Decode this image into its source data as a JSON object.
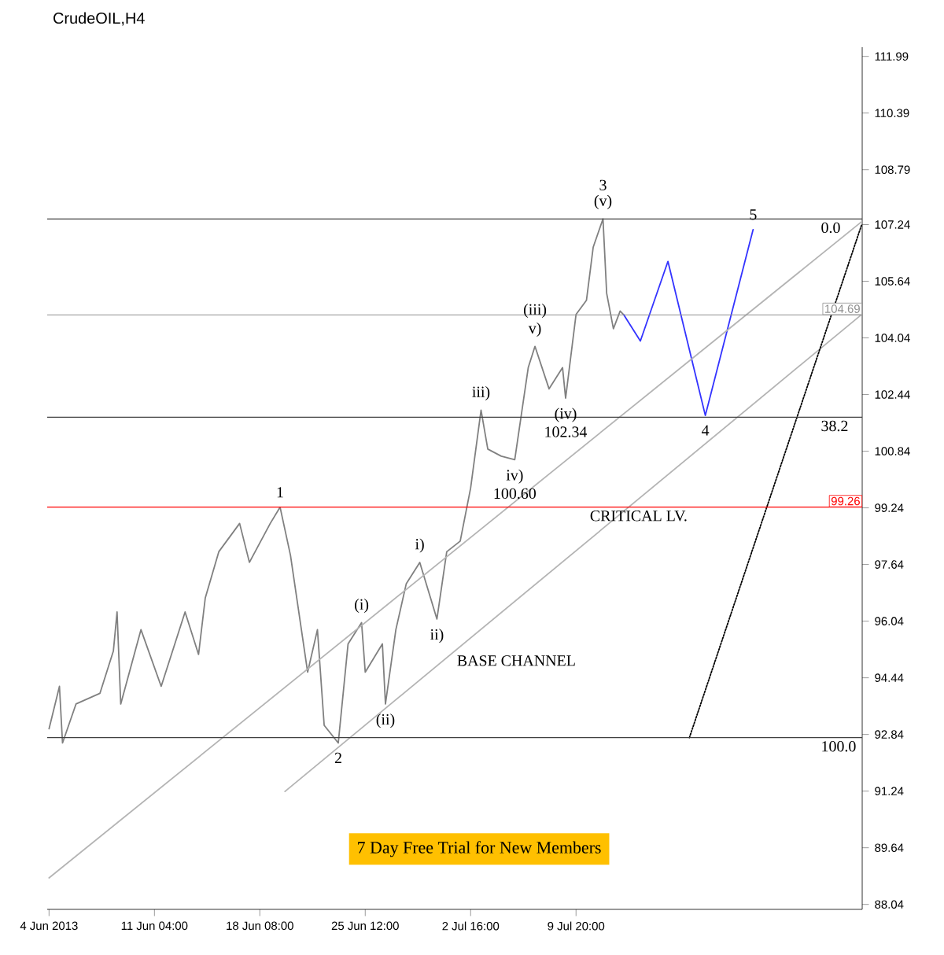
{
  "chart_data": {
    "type": "line",
    "title": "CrudeOIL,H4",
    "xlim": [
      "2013-06-03T21:00",
      "2013-07-29T07:00"
    ],
    "ylim": [
      87.9,
      112.25
    ],
    "xticks": [
      {
        "value": "2013-06-04T00:00",
        "label": "4 Jun 2013"
      },
      {
        "value": "2013-06-11T04:00",
        "label": "11 Jun 04:00"
      },
      {
        "value": "2013-06-18T08:00",
        "label": "18 Jun 08:00"
      },
      {
        "value": "2013-06-25T12:00",
        "label": "25 Jun 12:00"
      },
      {
        "value": "2013-07-02T16:00",
        "label": "2 Jul 16:00"
      },
      {
        "value": "2013-07-09T20:00",
        "label": "9 Jul 20:00"
      }
    ],
    "yticks": [
      111.99,
      110.39,
      108.79,
      107.24,
      105.64,
      104.04,
      102.44,
      100.84,
      99.24,
      97.64,
      96.04,
      94.44,
      92.84,
      91.24,
      89.64,
      88.04
    ],
    "series": [
      {
        "color": "#808080",
        "x": [
          "2013-06-04T00:00",
          "2013-06-04T17:00",
          "2013-06-04T22:00",
          "2013-06-05T20:00",
          "2013-06-07T11:00",
          "2013-06-08T09:00",
          "2013-06-08T15:00",
          "2013-06-08T21:00",
          "2013-06-10T06:00",
          "2013-06-11T15:00",
          "2013-06-13T06:00",
          "2013-06-14T04:00",
          "2013-06-14T15:00",
          "2013-06-15T13:00",
          "2013-06-16T23:00",
          "2013-06-17T15:00",
          "2013-06-19T01:00",
          "2013-06-19T17:00",
          "2013-06-20T10:00",
          "2013-06-21T14:00",
          "2013-06-22T06:00",
          "2013-06-22T17:00",
          "2013-06-23T16:00",
          "2013-06-24T08:00",
          "2013-06-25T06:00",
          "2013-06-25T12:00",
          "2013-06-26T16:00",
          "2013-06-26T21:00",
          "2013-06-27T14:00",
          "2013-06-28T07:00",
          "2013-06-29T05:00",
          "2013-06-30T09:00",
          "2013-07-01T01:00",
          "2013-07-01T23:00",
          "2013-07-02T16:00",
          "2013-07-03T09:00",
          "2013-07-03T20:00",
          "2013-07-04T18:00",
          "2013-07-05T16:00",
          "2013-07-06T14:00",
          "2013-07-07T01:00",
          "2013-07-08T00:00",
          "2013-07-08T22:00",
          "2013-07-09T03:00",
          "2013-07-09T20:00",
          "2013-07-10T13:00",
          "2013-07-11T00:00",
          "2013-07-11T16:00",
          "2013-07-11T22:00",
          "2013-07-12T09:00",
          "2013-07-12T20:00",
          "2013-07-13T02:00"
        ],
        "values": [
          93.0,
          94.2,
          92.6,
          93.7,
          94.0,
          95.2,
          96.3,
          93.7,
          95.8,
          94.2,
          96.3,
          95.1,
          96.7,
          98.0,
          98.8,
          97.7,
          98.8,
          99.26,
          97.9,
          94.6,
          95.8,
          93.1,
          92.6,
          95.4,
          96.0,
          94.6,
          95.4,
          93.7,
          95.8,
          97.1,
          97.7,
          96.1,
          98.0,
          98.3,
          99.8,
          102.0,
          100.9,
          100.7,
          100.6,
          103.2,
          103.8,
          102.6,
          103.2,
          102.34,
          104.7,
          105.1,
          106.6,
          107.4,
          105.3,
          104.3,
          104.8,
          104.69
        ]
      },
      {
        "color": "#3333ff",
        "x": [
          "2013-07-13T02:00",
          "2013-07-14T05:00",
          "2013-07-16T02:00",
          "2013-07-18T15:00",
          "2013-07-21T21:00"
        ],
        "values": [
          104.69,
          103.95,
          106.2,
          101.85,
          107.1
        ]
      },
      {
        "color": "#b4b4b4",
        "x": [
          "2013-06-04T00:00",
          "2013-07-29T06:00"
        ],
        "values": [
          88.79,
          107.32
        ]
      },
      {
        "color": "#b4b4b4",
        "x": [
          "2013-06-20T01:00",
          "2013-07-29T06:00"
        ],
        "values": [
          91.23,
          104.7
        ]
      },
      {
        "color": "#000000",
        "line_style": "dotted",
        "x": [
          "2013-07-17T13:00",
          "2013-07-29T06:00"
        ],
        "values": [
          92.75,
          107.23
        ]
      }
    ],
    "ref_lines": [
      {
        "axis": "y",
        "value": 104.69,
        "label": "104.69",
        "color": "#909090"
      },
      {
        "axis": "y",
        "value": 99.26,
        "label": "99.26",
        "color": "#ff0000"
      },
      {
        "axis": "y",
        "value": 107.4,
        "color": "#404040"
      },
      {
        "axis": "y",
        "value": 101.8,
        "color": "#404040"
      },
      {
        "axis": "y",
        "value": 92.75,
        "color": "#404040"
      }
    ],
    "annotations": [
      {
        "text": "1",
        "x": "2013-06-19T17:00",
        "y": 99.26
      },
      {
        "text": "2",
        "x": "2013-06-23T16:00",
        "y": 92.6
      },
      {
        "text": "(v)",
        "x": "2013-07-11T16:00",
        "y": 107.4
      },
      {
        "text": "3",
        "x": "2013-07-11T16:00",
        "y": 107.4
      },
      {
        "text": "4",
        "x": "2013-07-18T15:00",
        "y": 101.85
      },
      {
        "text": "5",
        "x": "2013-07-21T21:00",
        "y": 107.1
      },
      {
        "text": "(i)",
        "x": "2013-06-25T06:00",
        "y": 96.0
      },
      {
        "text": "(ii)",
        "x": "2013-06-26T21:00",
        "y": 93.7
      },
      {
        "text": "v)",
        "x": "2013-07-07T01:00",
        "y": 103.8
      },
      {
        "text": "(iii)",
        "x": "2013-07-07T01:00",
        "y": 103.8
      },
      {
        "text": "(iv)",
        "x": "2013-07-09T03:00",
        "y": 102.34
      },
      {
        "text": "102.34",
        "x": "2013-07-09T03:00",
        "y": 102.34
      },
      {
        "text": "i)",
        "x": "2013-06-29T05:00",
        "y": 97.7
      },
      {
        "text": "ii)",
        "x": "2013-06-30T09:00",
        "y": 96.1
      },
      {
        "text": "iii)",
        "x": "2013-07-03T09:00",
        "y": 102.0
      },
      {
        "text": "iv)",
        "x": "2013-07-05T16:00",
        "y": 100.6
      },
      {
        "text": "100.60",
        "x": "2013-07-05T16:00",
        "y": 100.6
      },
      {
        "text": "0.0",
        "x": "2013-07-26T06:00",
        "y": 107.4
      },
      {
        "text": "38.2",
        "x": "2013-07-26T06:00",
        "y": 101.8
      },
      {
        "text": "100.0",
        "x": "2013-07-26T06:00",
        "y": 92.75
      },
      {
        "text": "CRITICAL LV.",
        "x": "2013-07-10T13:00",
        "y": 99.26
      },
      {
        "text": "BASE CHANNEL",
        "x": "2013-07-01T12:00",
        "y": 95.17
      },
      "7 Day Free Trial for New Members"
    ]
  }
}
